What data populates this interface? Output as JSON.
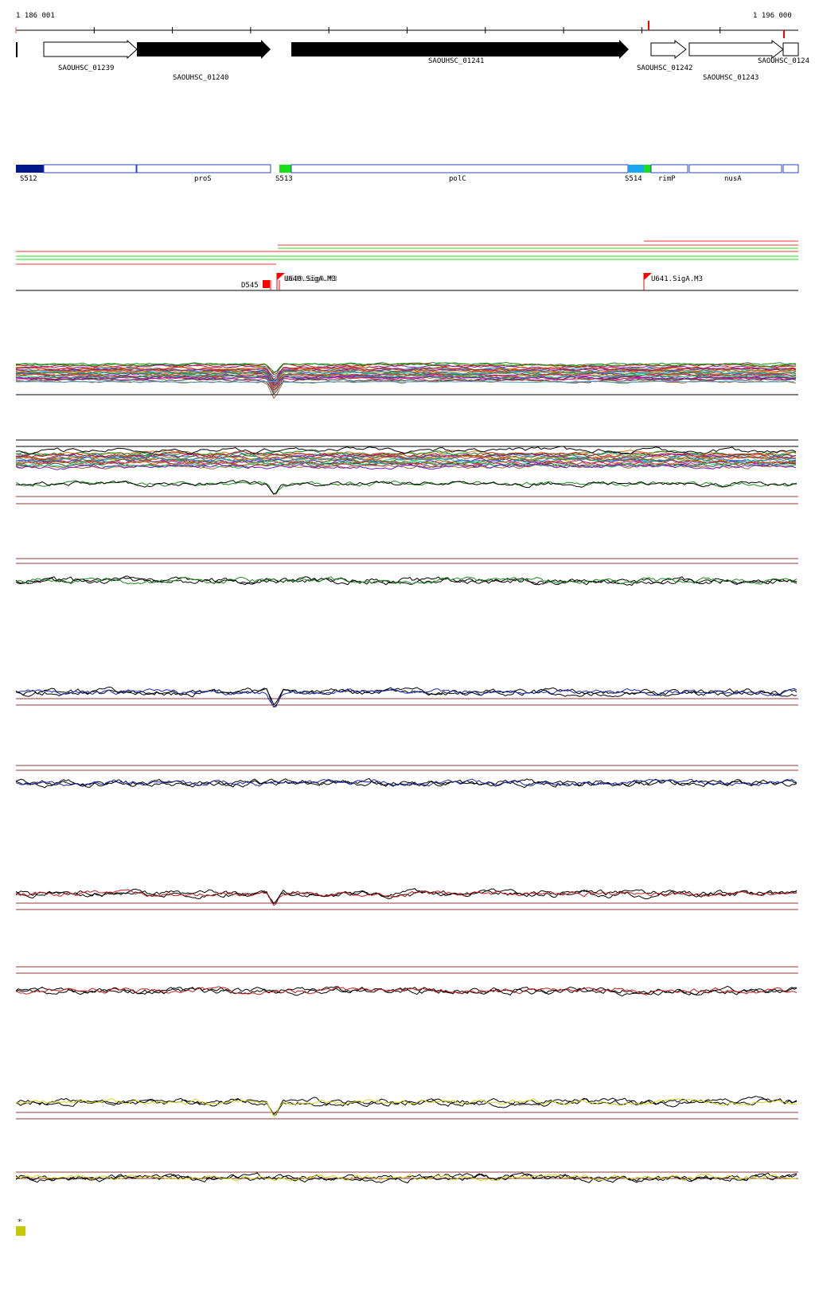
{
  "ruler": {
    "start_label": "1 186 001",
    "end_label": "1 196 000"
  },
  "genes": [
    {
      "name": "SAOUHSC_01239",
      "strand": "+",
      "filled": false
    },
    {
      "name": "SAOUHSC_01240",
      "strand": "+",
      "filled": true
    },
    {
      "name": "SAOUHSC_01241",
      "strand": "+",
      "filled": true
    },
    {
      "name": "SAOUHSC_01242",
      "strand": "+",
      "filled": false
    },
    {
      "name": "SAOUHSC_01243",
      "strand": "+",
      "filled": false
    },
    {
      "name": "SAOUHSC_0124",
      "strand": "+",
      "filled": false
    }
  ],
  "segments": {
    "labels": [
      "S512",
      "proS",
      "S513",
      "polC",
      "S514",
      "rimP",
      "nusA"
    ],
    "colors": {
      "S512": "#001a8c",
      "S513": "#18e018",
      "S514": "#18a8f0",
      "rimP_start": "#18e018",
      "outline": "#2a44c8"
    }
  },
  "features": [
    {
      "label": "D545",
      "color": "#ff0000"
    },
    {
      "label": "U640.SigA.M3",
      "overlap_label": "U639.SigA.M3",
      "color": "#ff0000"
    },
    {
      "label": "U641.SigA.M3",
      "color": "#ff0000"
    }
  ],
  "track_colors": {
    "green": "#1a8c1a",
    "blue": "#1a2ab4",
    "red": "#c81a1a",
    "yellow": "#d4d41a",
    "threshold": "#8c3a3a"
  },
  "legend": {
    "marker": "*",
    "swatch_color": "#c8c800"
  }
}
